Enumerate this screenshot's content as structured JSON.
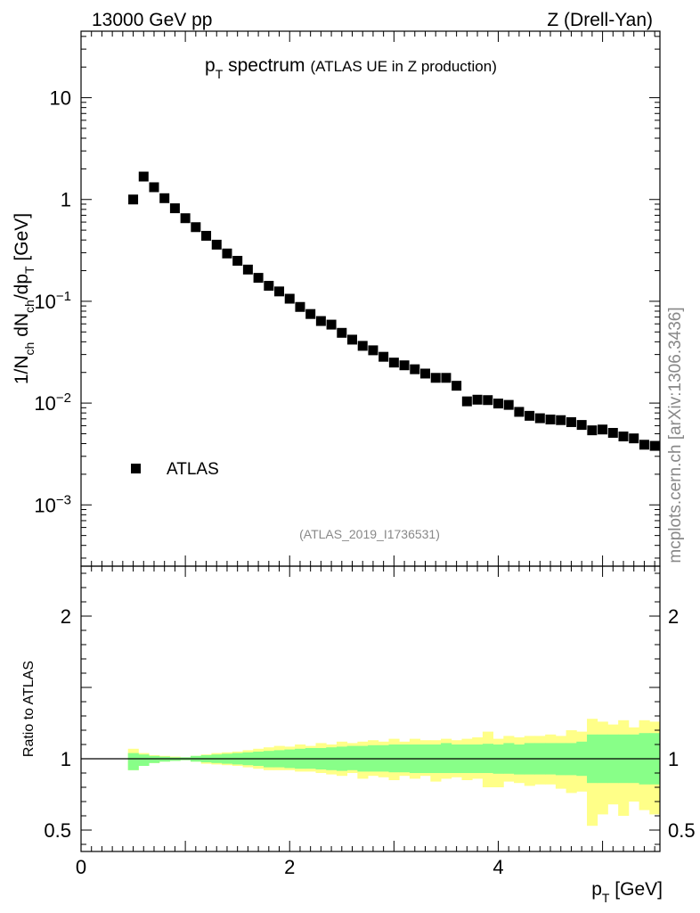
{
  "header": {
    "energy_label": "13000 GeV pp",
    "process_label": "Z (Drell-Yan)"
  },
  "side_label": "mcplots.cern.ch [arXiv:1306.3436]",
  "colors": {
    "band_inner": "#88ff88",
    "band_outer": "#ffff88",
    "marker": "#000000",
    "ref_label": "#888888"
  },
  "chart_data": [
    {
      "type": "scatter",
      "title_main": "p",
      "title_sub": "T",
      "title_rest": " spectrum",
      "title_note": "(ATLAS UE in Z production)",
      "ylabel": "1/N_ch dN_ch/dp_T [GeV]",
      "ylabel_parts": {
        "a": "1/N",
        "b": "ch",
        "c": " dN",
        "d": "ch",
        "e": "/dp",
        "f": "T",
        "g": " [GeV]"
      },
      "yscale": "log",
      "ylim": [
        0.00025,
        45
      ],
      "xlim": [
        0,
        5.55
      ],
      "y_ticks": [
        {
          "value": 10,
          "base": "10",
          "exp": ""
        },
        {
          "value": 1,
          "base": "1",
          "exp": ""
        },
        {
          "value": 0.1,
          "base": "10",
          "exp": "−1"
        },
        {
          "value": 0.01,
          "base": "10",
          "exp": "−2"
        },
        {
          "value": 0.001,
          "base": "10",
          "exp": "−3"
        }
      ],
      "legend": {
        "entry": "ATLAS",
        "position": "bottom-left"
      },
      "reference_label": "(ATLAS_2019_I1736531)",
      "series": [
        {
          "name": "ATLAS",
          "x": [
            0.5,
            0.6,
            0.7,
            0.8,
            0.9,
            1.0,
            1.1,
            1.2,
            1.3,
            1.4,
            1.5,
            1.6,
            1.7,
            1.8,
            1.9,
            2.0,
            2.1,
            2.2,
            2.3,
            2.4,
            2.5,
            2.6,
            2.7,
            2.8,
            2.9,
            3.0,
            3.1,
            3.2,
            3.3,
            3.4,
            3.5,
            3.6,
            3.7,
            3.8,
            3.9,
            4.0,
            4.1,
            4.2,
            4.3,
            4.4,
            4.5,
            4.6,
            4.7,
            4.8,
            4.9,
            5.0,
            5.1,
            5.2,
            5.3,
            5.4,
            5.5
          ],
          "values": [
            1.0,
            1.68,
            1.32,
            1.03,
            0.82,
            0.655,
            0.535,
            0.44,
            0.36,
            0.295,
            0.25,
            0.205,
            0.17,
            0.142,
            0.125,
            0.106,
            0.088,
            0.075,
            0.064,
            0.059,
            0.049,
            0.042,
            0.0365,
            0.033,
            0.0285,
            0.025,
            0.0235,
            0.0215,
            0.0195,
            0.0177,
            0.0177,
            0.0148,
            0.0104,
            0.0108,
            0.0107,
            0.0099,
            0.0096,
            0.0082,
            0.0075,
            0.0071,
            0.0069,
            0.0068,
            0.0065,
            0.0061,
            0.0054,
            0.0055,
            0.0051,
            0.0047,
            0.0045,
            0.0039,
            0.0038
          ]
        }
      ]
    },
    {
      "type": "area",
      "ylabel": "Ratio to ATLAS",
      "ylim": [
        0.35,
        2.35
      ],
      "xlim": [
        0,
        5.55
      ],
      "xlabel_main": "p",
      "xlabel_sub": "T",
      "xlabel_rest": " [GeV]",
      "x_ticks": [
        "0",
        "2",
        "4"
      ],
      "x_tick_values": [
        0,
        2,
        4
      ],
      "y_ticks": [
        "0.5",
        "1",
        "2"
      ],
      "y_tick_values": [
        0.5,
        1,
        2
      ],
      "reference_line": 1,
      "bins_x": [
        0.45,
        0.55,
        0.65,
        0.75,
        0.85,
        0.95,
        1.05,
        1.15,
        1.25,
        1.35,
        1.45,
        1.55,
        1.65,
        1.75,
        1.85,
        1.95,
        2.05,
        2.15,
        2.25,
        2.35,
        2.45,
        2.55,
        2.65,
        2.75,
        2.85,
        2.95,
        3.05,
        3.15,
        3.25,
        3.35,
        3.45,
        3.55,
        3.65,
        3.75,
        3.85,
        3.95,
        4.05,
        4.15,
        4.25,
        4.35,
        4.45,
        4.55,
        4.65,
        4.75,
        4.85,
        4.95,
        5.05,
        5.15,
        5.25,
        5.35,
        5.45,
        5.55
      ],
      "inner_band": {
        "lo": [
          0.92,
          0.95,
          0.97,
          0.98,
          0.985,
          0.99,
          0.98,
          0.975,
          0.97,
          0.965,
          0.96,
          0.955,
          0.95,
          0.94,
          0.94,
          0.935,
          0.93,
          0.93,
          0.925,
          0.92,
          0.915,
          0.92,
          0.91,
          0.91,
          0.91,
          0.905,
          0.905,
          0.9,
          0.9,
          0.9,
          0.9,
          0.9,
          0.9,
          0.9,
          0.9,
          0.895,
          0.895,
          0.89,
          0.89,
          0.89,
          0.89,
          0.885,
          0.885,
          0.88,
          0.83,
          0.83,
          0.83,
          0.83,
          0.83,
          0.82,
          0.82
        ],
        "hi": [
          1.04,
          1.03,
          1.02,
          1.015,
          1.01,
          1.01,
          1.02,
          1.025,
          1.03,
          1.035,
          1.04,
          1.045,
          1.05,
          1.055,
          1.06,
          1.065,
          1.07,
          1.075,
          1.075,
          1.08,
          1.085,
          1.09,
          1.09,
          1.095,
          1.095,
          1.1,
          1.1,
          1.1,
          1.1,
          1.1,
          1.11,
          1.1,
          1.1,
          1.1,
          1.105,
          1.1,
          1.11,
          1.1,
          1.11,
          1.11,
          1.11,
          1.11,
          1.11,
          1.12,
          1.17,
          1.17,
          1.17,
          1.17,
          1.17,
          1.18,
          1.18
        ]
      },
      "outer_band": {
        "lo": [
          0.92,
          0.95,
          0.97,
          0.98,
          0.985,
          0.99,
          0.98,
          0.965,
          0.96,
          0.955,
          0.95,
          0.94,
          0.93,
          0.92,
          0.92,
          0.92,
          0.91,
          0.91,
          0.9,
          0.89,
          0.88,
          0.9,
          0.86,
          0.88,
          0.87,
          0.85,
          0.88,
          0.86,
          0.88,
          0.84,
          0.86,
          0.87,
          0.85,
          0.86,
          0.8,
          0.8,
          0.84,
          0.83,
          0.81,
          0.82,
          0.82,
          0.79,
          0.76,
          0.77,
          0.53,
          0.61,
          0.68,
          0.6,
          0.7,
          0.64,
          0.61
        ],
        "hi": [
          1.07,
          1.04,
          1.025,
          1.02,
          1.015,
          1.01,
          1.02,
          1.03,
          1.04,
          1.045,
          1.05,
          1.06,
          1.07,
          1.08,
          1.09,
          1.085,
          1.1,
          1.09,
          1.11,
          1.1,
          1.12,
          1.11,
          1.12,
          1.13,
          1.12,
          1.14,
          1.12,
          1.14,
          1.13,
          1.13,
          1.14,
          1.13,
          1.14,
          1.15,
          1.19,
          1.14,
          1.16,
          1.15,
          1.16,
          1.16,
          1.17,
          1.16,
          1.2,
          1.19,
          1.28,
          1.26,
          1.24,
          1.27,
          1.22,
          1.27,
          1.26
        ]
      }
    }
  ]
}
